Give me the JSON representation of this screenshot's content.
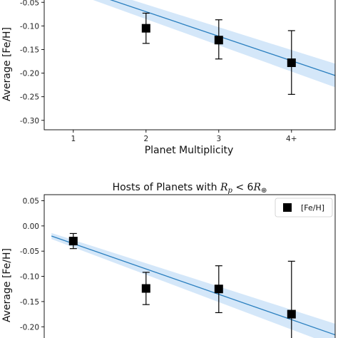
{
  "chart_data": [
    {
      "type": "scatter",
      "ylabel": "Average [Fe/H]",
      "xlabel": "Planet Multiplicity",
      "categories": [
        "1",
        "2",
        "3",
        "4+"
      ],
      "x": [
        2,
        3,
        4
      ],
      "yticks": [
        "-0.05",
        "-0.10",
        "-0.15",
        "-0.20",
        "-0.25",
        "-0.30"
      ],
      "ylim": [
        -0.32,
        -0.03
      ],
      "series": [
        {
          "values": [
            -0.105,
            -0.13,
            -0.178
          ],
          "err_low": [
            0.032,
            0.04,
            0.067
          ],
          "err_high": [
            0.032,
            0.043,
            0.068
          ]
        }
      ],
      "fit_line": {
        "x": [
          1.0,
          4.6
        ],
        "y": [
          -0.018,
          -0.205
        ]
      },
      "fit_band_halfwidth": [
        0.012,
        0.025
      ],
      "colors": {
        "marker": "#000000",
        "line": "#2a7fbf",
        "band": "#cce3f8"
      },
      "grid": false
    },
    {
      "type": "scatter",
      "title_prefix": "Hosts of Planets with ",
      "title_math": "R",
      "title_sub": "p",
      "title_mid": " < 6",
      "title_math2": "R",
      "title_sub2": "⊕",
      "ylabel": "Average [Fe/H]",
      "yticks": [
        "0.05",
        "0.00",
        "-0.05",
        "-0.10",
        "-0.15",
        "-0.20"
      ],
      "ylim": [
        -0.235,
        0.062
      ],
      "x": [
        1,
        2,
        3,
        4
      ],
      "series": [
        {
          "name": "[Fe/H]",
          "values": [
            -0.03,
            -0.124,
            -0.125,
            -0.175
          ],
          "err_low": [
            0.015,
            0.032,
            0.047,
            0.065
          ],
          "err_high": [
            0.015,
            0.032,
            0.046,
            0.105
          ]
        }
      ],
      "fit_line": {
        "x": [
          0.7,
          4.6
        ],
        "y": [
          -0.02,
          -0.216
        ]
      },
      "fit_band_halfwidth": [
        0.006,
        0.022
      ],
      "legend": "top-right",
      "colors": {
        "marker": "#000000",
        "line": "#2a7fbf",
        "band": "#cce3f8"
      },
      "grid": false
    }
  ]
}
